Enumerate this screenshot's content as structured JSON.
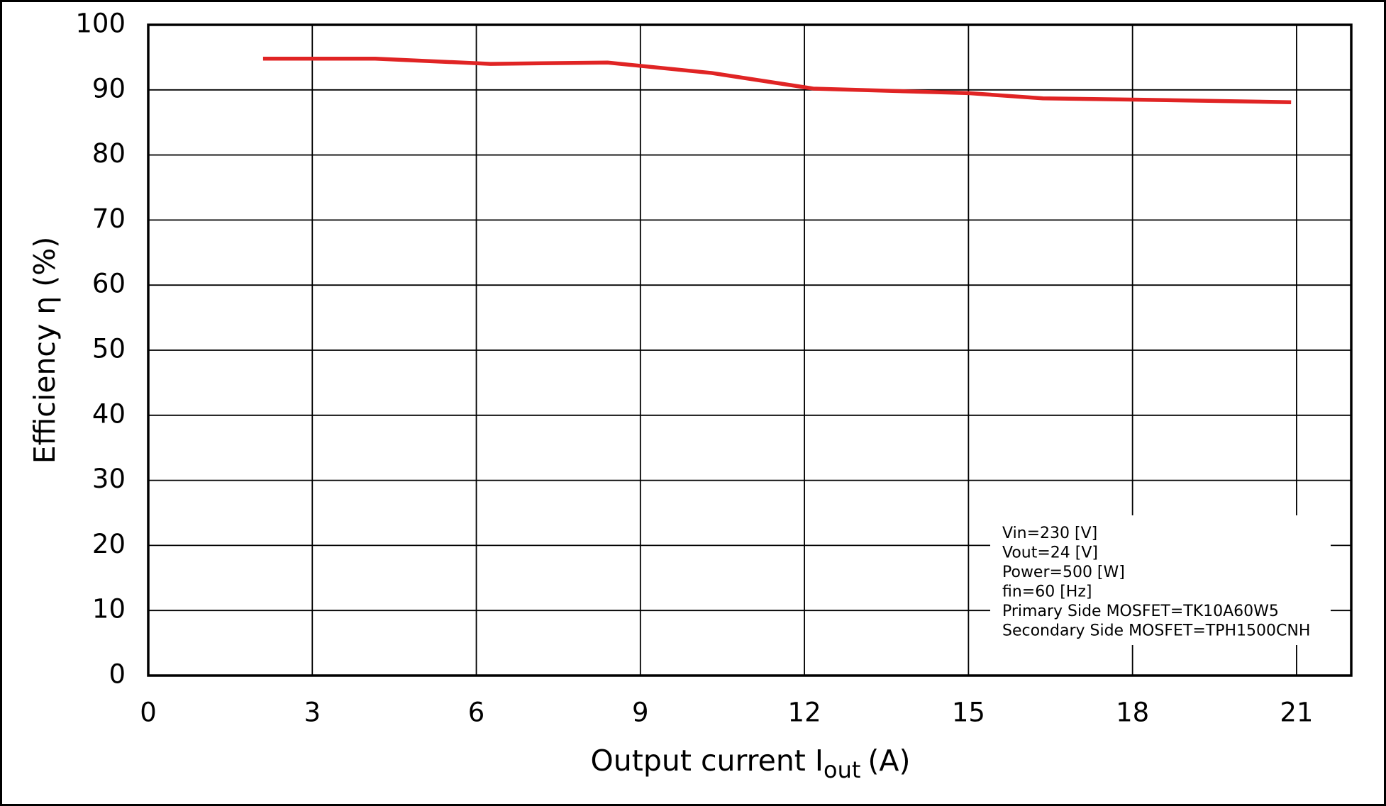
{
  "chart_data": {
    "type": "line",
    "xlabel": {
      "text": "Output current  I",
      "subscript": "out",
      "unit": "(A)"
    },
    "ylabel": "Efficiency  η (%)",
    "x": [
      2.1,
      4.15,
      6.26,
      8.4,
      10.3,
      12.16,
      15.0,
      16.36,
      18.1,
      20.9
    ],
    "series": [
      {
        "color": "#e02424",
        "values": [
          94.8,
          94.8,
          94.0,
          94.2,
          92.6,
          90.2,
          89.5,
          88.7,
          88.5,
          88.1
        ]
      }
    ],
    "xlim": [
      0,
      22
    ],
    "xticks": [
      0,
      3,
      6,
      9,
      12,
      15,
      18,
      21
    ],
    "ylim": [
      0,
      100
    ],
    "yticks": [
      0,
      10,
      20,
      30,
      40,
      50,
      60,
      70,
      80,
      90,
      100
    ],
    "grid": true,
    "annotation": [
      "Vin=230 [V]",
      "Vout=24 [V]",
      "Power=500 [W]",
      "fin=60 [Hz]",
      "Primary Side MOSFET=TK10A60W5",
      "Secondary Side MOSFET=TPH1500CNH"
    ]
  }
}
